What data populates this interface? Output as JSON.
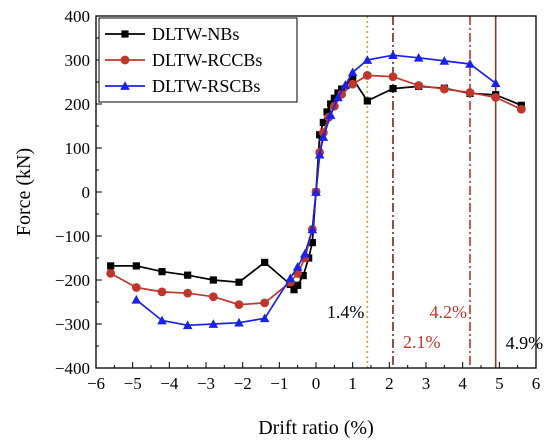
{
  "chart_data": {
    "type": "line",
    "xlabel": "Drift ratio (%)",
    "ylabel": "Force (kN)",
    "xlim": [
      -6,
      6
    ],
    "ylim": [
      -400,
      400
    ],
    "xticks": [
      -6,
      -5,
      -4,
      -3,
      -2,
      -1,
      0,
      1,
      2,
      3,
      4,
      5,
      6
    ],
    "yticks": [
      -400,
      -300,
      -200,
      -100,
      0,
      100,
      200,
      300,
      400
    ],
    "xtick_labels": [
      "−6",
      "−5",
      "−4",
      "−3",
      "−2",
      "−1",
      "0",
      "1",
      "2",
      "3",
      "4",
      "5",
      "6"
    ],
    "ytick_labels": [
      "−400",
      "−300",
      "−200",
      "−100",
      "0",
      "100",
      "200",
      "300",
      "400"
    ],
    "grid": false,
    "legend_position": "top-left",
    "series": [
      {
        "name": "DLTW-NBs",
        "color": "#000000",
        "marker": "square",
        "points": [
          [
            -5.6,
            -168
          ],
          [
            -4.9,
            -168
          ],
          [
            -4.2,
            -181
          ],
          [
            -3.5,
            -189
          ],
          [
            -2.8,
            -200
          ],
          [
            -2.1,
            -205
          ],
          [
            -1.4,
            -160
          ],
          [
            -0.7,
            -210
          ],
          [
            -0.6,
            -222
          ],
          [
            -0.5,
            -212
          ],
          [
            -0.35,
            -190
          ],
          [
            -0.2,
            -150
          ],
          [
            -0.1,
            -115
          ],
          [
            0,
            0
          ],
          [
            0.1,
            130
          ],
          [
            0.2,
            158
          ],
          [
            0.3,
            182
          ],
          [
            0.4,
            200
          ],
          [
            0.5,
            213
          ],
          [
            0.6,
            225
          ],
          [
            0.7,
            234
          ],
          [
            1.0,
            258
          ],
          [
            1.4,
            207
          ],
          [
            2.1,
            235
          ],
          [
            2.8,
            240
          ],
          [
            3.5,
            236
          ],
          [
            4.2,
            224
          ],
          [
            4.9,
            221
          ],
          [
            5.6,
            197
          ]
        ]
      },
      {
        "name": "DLTW-RCCBs",
        "color": "#c0362a",
        "marker": "circle",
        "points": [
          [
            -5.6,
            -185
          ],
          [
            -4.9,
            -217
          ],
          [
            -4.2,
            -227
          ],
          [
            -3.5,
            -230
          ],
          [
            -2.8,
            -238
          ],
          [
            -2.1,
            -256
          ],
          [
            -1.4,
            -252
          ],
          [
            -0.7,
            -205
          ],
          [
            -0.5,
            -185
          ],
          [
            -0.3,
            -150
          ],
          [
            -0.1,
            -85
          ],
          [
            0,
            0
          ],
          [
            0.1,
            90
          ],
          [
            0.2,
            135
          ],
          [
            0.35,
            170
          ],
          [
            0.5,
            195
          ],
          [
            0.7,
            222
          ],
          [
            1.0,
            245
          ],
          [
            1.4,
            265
          ],
          [
            2.1,
            262
          ],
          [
            2.8,
            242
          ],
          [
            3.5,
            234
          ],
          [
            4.2,
            226
          ],
          [
            4.9,
            215
          ],
          [
            5.6,
            188
          ]
        ]
      },
      {
        "name": "DLTW-RSCBs",
        "color": "#1a22e6",
        "marker": "triangle",
        "points": [
          [
            -4.9,
            -245
          ],
          [
            -4.2,
            -292
          ],
          [
            -3.5,
            -303
          ],
          [
            -2.8,
            -300
          ],
          [
            -2.1,
            -297
          ],
          [
            -1.4,
            -287
          ],
          [
            -0.7,
            -196
          ],
          [
            -0.5,
            -170
          ],
          [
            -0.3,
            -140
          ],
          [
            -0.1,
            -85
          ],
          [
            0,
            0
          ],
          [
            0.1,
            85
          ],
          [
            0.2,
            125
          ],
          [
            0.4,
            175
          ],
          [
            0.6,
            215
          ],
          [
            0.8,
            243
          ],
          [
            1.0,
            272
          ],
          [
            1.4,
            300
          ],
          [
            2.1,
            311
          ],
          [
            2.8,
            305
          ],
          [
            3.5,
            298
          ],
          [
            4.2,
            291
          ],
          [
            4.9,
            247
          ]
        ]
      }
    ],
    "reference_lines": [
      {
        "x": 1.4,
        "label": "1.4%",
        "line_color": "#d8a020",
        "label_color": "#000000",
        "dash": "dot"
      },
      {
        "x": 2.1,
        "label": "2.1%",
        "line_color": "#7a2518",
        "label_color": "#c0362a",
        "dash": "dashdot"
      },
      {
        "x": 4.2,
        "label": "4.2%",
        "line_color": "#c0362a",
        "label_color": "#c0362a",
        "dash": "dashdot"
      },
      {
        "x": 4.9,
        "label": "4.9%",
        "line_color": "#8b3a1e",
        "label_color": "#000000",
        "dash": "solid"
      }
    ]
  }
}
